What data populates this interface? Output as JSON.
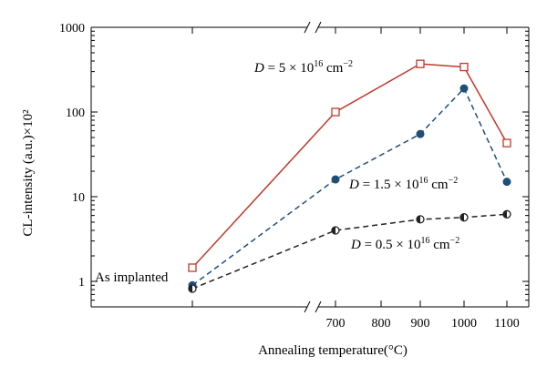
{
  "chart_data": {
    "type": "line",
    "title": "",
    "xlabel": "Annealing temperature(°C)",
    "ylabel": "CL-intensity (a.u.)×10²",
    "yscale": "log",
    "ylim": [
      0.5,
      1000
    ],
    "y_ticks": [
      "1",
      "10",
      "100",
      "1000"
    ],
    "x_axis_break": true,
    "x_categories": [
      "As implanted",
      "700",
      "800",
      "900",
      "1000",
      "1100"
    ],
    "x_tick_labels": [
      "700",
      "800",
      "900",
      "1000",
      "1100"
    ],
    "grid": false,
    "series": [
      {
        "name": "D = 5 × 10^16 cm^−2",
        "label_parts": [
          "D",
          " = 5 × 10",
          "16",
          " cm",
          "−2"
        ],
        "color": "#c0392b",
        "line_style": "solid",
        "marker": "open-square",
        "points": [
          {
            "x": "As implanted",
            "y": 1.45
          },
          {
            "x": "700",
            "y": 100
          },
          {
            "x": "900",
            "y": 370
          },
          {
            "x": "1000",
            "y": 340
          },
          {
            "x": "1100",
            "y": 43
          }
        ]
      },
      {
        "name": "D = 1.5 × 10^16 cm^−2",
        "label_parts": [
          "D",
          " = 1.5 × 10",
          "16",
          " cm",
          "−2"
        ],
        "color": "#1f4e79",
        "line_style": "dashed",
        "marker": "filled-circle",
        "points": [
          {
            "x": "As implanted",
            "y": 0.9
          },
          {
            "x": "700",
            "y": 16
          },
          {
            "x": "900",
            "y": 55
          },
          {
            "x": "1000",
            "y": 190
          },
          {
            "x": "1100",
            "y": 15
          }
        ]
      },
      {
        "name": "D = 0.5 × 10^16 cm^−2",
        "label_parts": [
          "D",
          " = 0.5 × 10",
          "16",
          " cm",
          "−2"
        ],
        "color": "#222222",
        "line_style": "dashed",
        "marker": "half-filled-circle",
        "points": [
          {
            "x": "As implanted",
            "y": 0.82
          },
          {
            "x": "700",
            "y": 4
          },
          {
            "x": "900",
            "y": 5.4
          },
          {
            "x": "1000",
            "y": 5.7
          },
          {
            "x": "1100",
            "y": 6.2
          }
        ]
      }
    ],
    "annotations": {
      "as_implanted": "As implanted"
    }
  }
}
